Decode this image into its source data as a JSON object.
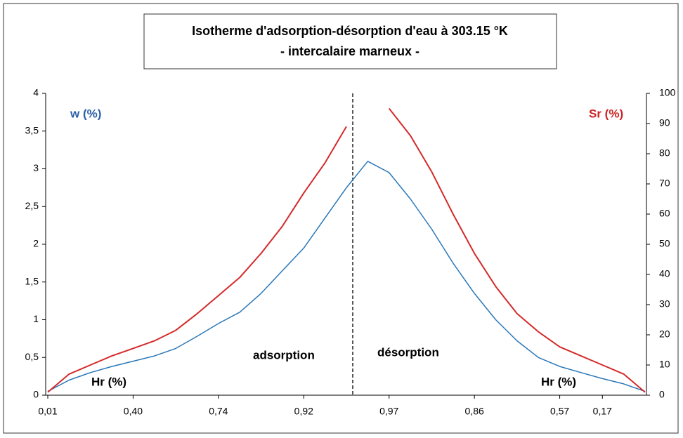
{
  "chart_data": {
    "type": "line",
    "title": [
      "Isotherme d'adsorption-désorption d'eau à 303.15 °K",
      "- intercalaire marneux -"
    ],
    "categories": [
      "0,01",
      null,
      null,
      null,
      "0,40",
      null,
      null,
      null,
      "0,74",
      null,
      null,
      null,
      "0,92",
      null,
      null,
      null,
      "0,97",
      null,
      null,
      null,
      "0,86",
      null,
      null,
      null,
      "0,57",
      null,
      "0,17",
      null,
      null
    ],
    "series": [
      {
        "name": "w (%)",
        "color": "#2a77b8",
        "axis": "y",
        "values": [
          0.05,
          0.2,
          0.3,
          0.38,
          0.45,
          0.52,
          0.62,
          0.78,
          0.95,
          1.1,
          1.35,
          1.65,
          1.95,
          2.35,
          2.75,
          3.1,
          2.95,
          2.6,
          2.2,
          1.75,
          1.35,
          1.0,
          0.72,
          0.5,
          0.38,
          0.3,
          0.22,
          0.15,
          0.05
        ]
      },
      {
        "name": "Sr (%)",
        "color": "#d42a2a",
        "axis": "y2",
        "values": [
          1,
          7,
          10,
          13,
          15.5,
          18,
          21.5,
          27,
          33,
          39,
          47,
          56,
          67,
          77,
          89,
          null,
          95,
          86,
          74,
          60,
          47,
          36,
          27,
          21,
          16,
          13,
          10,
          7,
          1
        ]
      }
    ],
    "annotations": [
      "adsorption",
      "désorption",
      "Hr (%)",
      "Hr (%)"
    ],
    "ylim": [
      0,
      4
    ],
    "yticks": [
      0,
      {
        "value": 0.5,
        "label": "0,5"
      },
      1,
      {
        "value": 1.5,
        "label": "1,5"
      },
      2,
      {
        "value": 2.5,
        "label": "2,5"
      },
      3,
      {
        "value": 3.5,
        "label": "3,5"
      },
      4
    ],
    "y2lim": [
      0,
      100
    ],
    "y2ticks": [
      0,
      10,
      20,
      30,
      40,
      50,
      60,
      70,
      80,
      90,
      100
    ],
    "grid": false
  }
}
